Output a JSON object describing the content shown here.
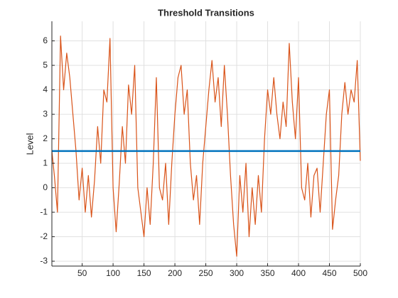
{
  "chart_data": {
    "type": "line",
    "title": "Threshold Transitions",
    "ylabel": "Level",
    "xlim": [
      1,
      500
    ],
    "ylim": [
      -3.2,
      6.8
    ],
    "xticks": [
      50,
      100,
      150,
      200,
      250,
      300,
      350,
      400,
      450,
      500
    ],
    "yticks": [
      -3,
      -2,
      -1,
      0,
      1,
      2,
      3,
      4,
      5,
      6
    ],
    "grid": true,
    "series": [
      {
        "color": "#d95319",
        "width": 1.2,
        "x": [
          1,
          5,
          10,
          15,
          20,
          25,
          30,
          35,
          40,
          45,
          50,
          55,
          60,
          65,
          70,
          75,
          80,
          85,
          90,
          95,
          100,
          105,
          110,
          115,
          120,
          125,
          130,
          135,
          140,
          145,
          150,
          155,
          160,
          165,
          170,
          175,
          180,
          185,
          190,
          195,
          200,
          205,
          210,
          215,
          220,
          225,
          230,
          235,
          240,
          245,
          250,
          255,
          260,
          265,
          270,
          275,
          280,
          285,
          290,
          295,
          300,
          305,
          310,
          315,
          320,
          325,
          330,
          335,
          340,
          345,
          350,
          355,
          360,
          365,
          370,
          375,
          380,
          385,
          390,
          395,
          400,
          405,
          410,
          415,
          420,
          425,
          430,
          435,
          440,
          445,
          450,
          455,
          460,
          465,
          470,
          475,
          480,
          485,
          490,
          495,
          500
        ],
        "values": [
          1.5,
          0.5,
          -1,
          6.2,
          4,
          5.5,
          4.5,
          3,
          1.5,
          -0.5,
          0.8,
          -1,
          0.5,
          -1.2,
          0.3,
          2.5,
          1,
          4,
          3.5,
          6.1,
          0,
          -1.8,
          0.2,
          2.5,
          1,
          4.2,
          3,
          5,
          0,
          -1,
          -2,
          0,
          -1.5,
          1,
          4.5,
          0,
          -0.5,
          1,
          -1.5,
          1,
          3,
          4.5,
          5,
          3,
          4,
          1,
          -0.5,
          0.5,
          -1.5,
          1,
          2.5,
          4,
          5.2,
          3.5,
          4.5,
          2.5,
          5,
          3,
          0.5,
          -1.5,
          -2.8,
          0.5,
          -1,
          1,
          -2,
          0,
          -1.5,
          0.5,
          -1,
          2,
          4,
          3,
          4.5,
          3,
          2,
          3.5,
          2.5,
          5.9,
          3.5,
          2,
          4.5,
          0,
          -0.5,
          1,
          -1.2,
          0.5,
          0.8,
          -1,
          1,
          3,
          4,
          -1.7,
          -0.5,
          0.5,
          3,
          4.3,
          3,
          4,
          3.5,
          5.2,
          1.1
        ]
      },
      {
        "color": "#0072bd",
        "width": 2.5,
        "x": [
          1,
          500
        ],
        "values": [
          1.5,
          1.5
        ]
      }
    ]
  }
}
